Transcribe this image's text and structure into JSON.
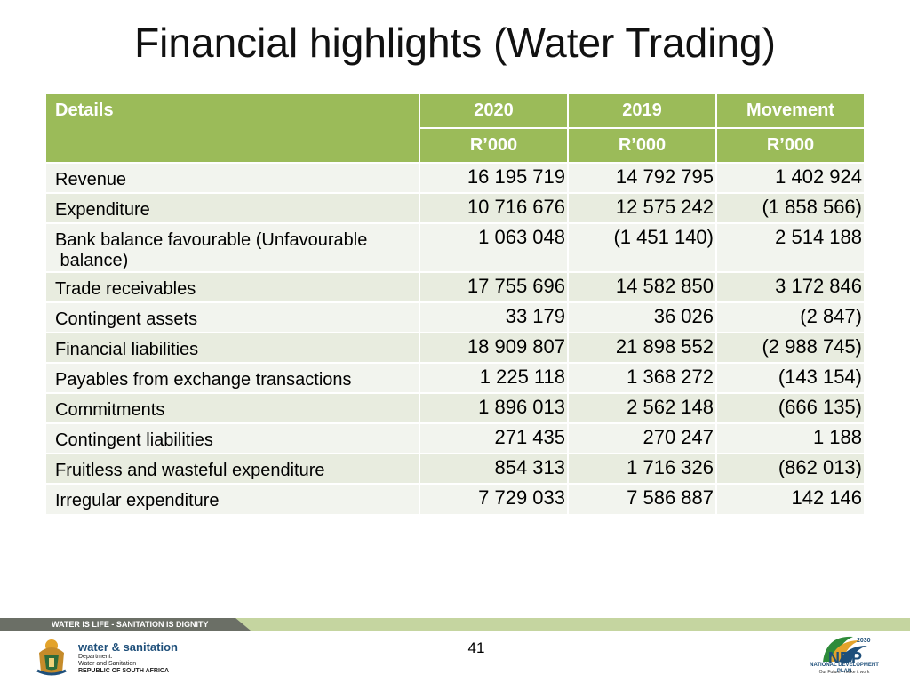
{
  "slide": {
    "title": "Financial highlights (Water Trading)",
    "page_number": "41",
    "tagline": "WATER IS LIFE - SANITATION IS DIGNITY"
  },
  "table": {
    "header": {
      "details": "Details",
      "col_2020": "2020",
      "col_2019": "2019",
      "col_movement": "Movement",
      "unit": "R’000"
    },
    "rows": [
      {
        "label": "Revenue",
        "v2020": "16 195 719",
        "v2019": "14 792 795",
        "movement": "1 402 924"
      },
      {
        "label": "Expenditure",
        "v2020": "10 716 676",
        "v2019": "12 575 242",
        "movement": "(1 858 566)"
      },
      {
        "label": "Bank balance favourable (Unfavourable",
        "label_line2": " balance)",
        "v2020": "1 063 048",
        "v2019": "(1 451 140)",
        "movement": "2 514 188"
      },
      {
        "label": "Trade receivables",
        "v2020": "17 755 696",
        "v2019": "14 582 850",
        "movement": "3 172 846"
      },
      {
        "label": "Contingent assets",
        "v2020": "33 179",
        "v2019": "36 026",
        "movement": "(2 847)"
      },
      {
        "label": "Financial liabilities",
        "v2020": "18 909 807",
        "v2019": "21 898 552",
        "movement": "(2 988 745)"
      },
      {
        "label": "Payables from exchange transactions",
        "v2020": "1 225 118",
        "v2019": "1 368 272",
        "movement": "(143 154)"
      },
      {
        "label": "Commitments",
        "v2020": "1 896 013",
        "v2019": "2 562 148",
        "movement": "(666 135)"
      },
      {
        "label": "Contingent liabilities",
        "v2020": "271 435",
        "v2019": "270 247",
        "movement": "1 188"
      },
      {
        "label": "Fruitless and wasteful expenditure",
        "v2020": "854 313",
        "v2019": "1 716 326",
        "movement": "(862 013)"
      },
      {
        "label": "Irregular expenditure",
        "v2020": "7 729 033",
        "v2019": "7 586 887",
        "movement": "142 146"
      }
    ]
  },
  "footer": {
    "dept_name": "water & sanitation",
    "dept_line1": "Department:",
    "dept_line2": "Water and Sanitation",
    "dept_line3": "REPUBLIC OF SOUTH AFRICA",
    "ndp_year": "2030",
    "ndp_mark": "NDP",
    "ndp_name": "NATIONAL DEVELOPMENT PLAN",
    "ndp_slogan": "Our Future - make it work"
  },
  "colors": {
    "header_green": "#9bbb59",
    "row_dark": "#e8ecdf",
    "row_light": "#f2f4ee",
    "brand_blue": "#1e4f7a"
  }
}
